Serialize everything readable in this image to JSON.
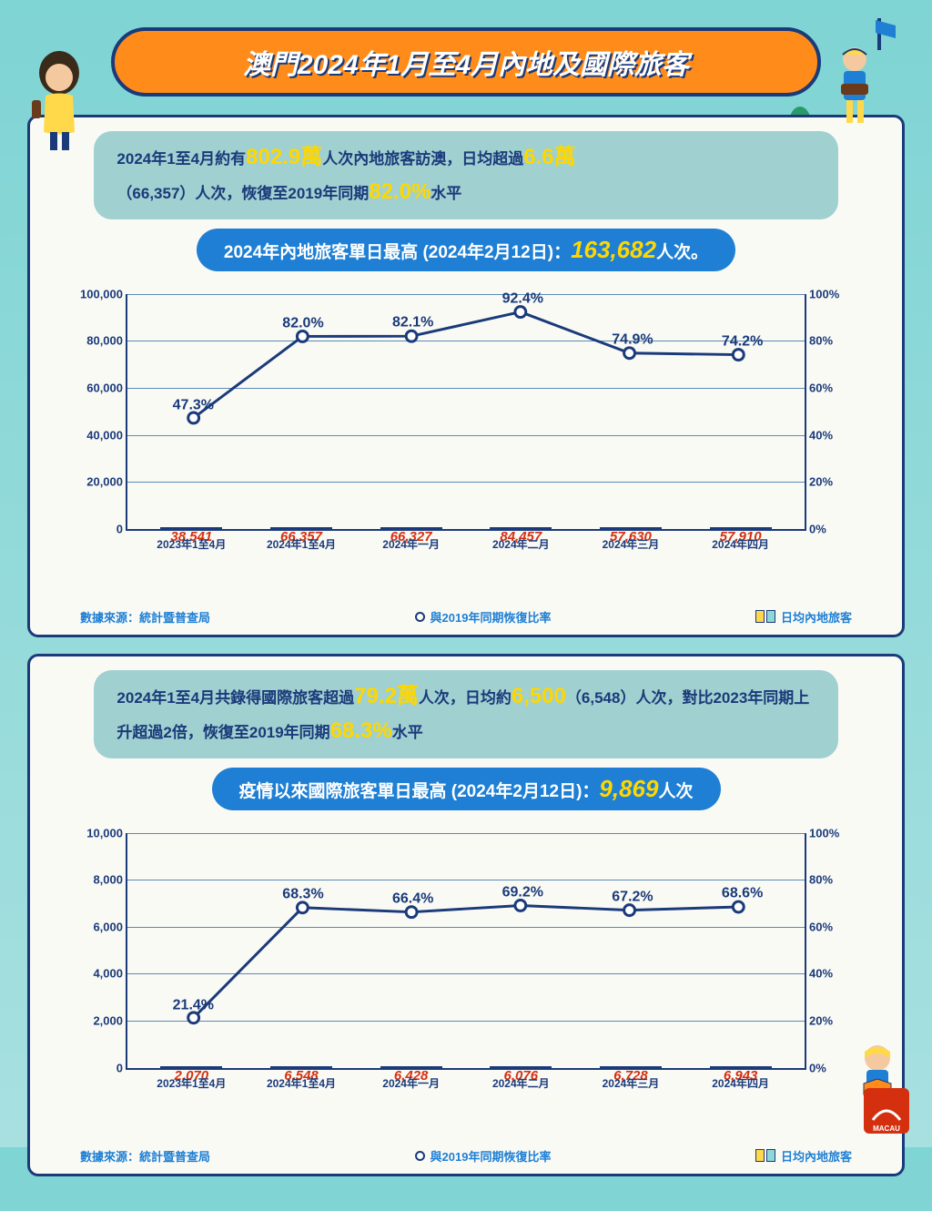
{
  "title": "澳門2024年1月至4月內地及國際旅客",
  "colors": {
    "page_bg": "#7fd4d4",
    "panel_bg": "#fafaf5",
    "border": "#1a3a7a",
    "title_bg": "#ff8c1a",
    "info_bg": "#a0d0d0",
    "peak_bg": "#1e7fd4",
    "highlight": "#ffd700",
    "bar_yellow": "#ffd94a",
    "bar_cyan": "#8fd8d8",
    "bar_value": "#d43010",
    "text": "#1a3a7a",
    "line": "#1a3a7a"
  },
  "mainland": {
    "info_parts": {
      "p1": "2024年1至4月約有",
      "h1": "802.9萬",
      "p2": "人次內地旅客訪澳，日均超過",
      "h2": "6.6萬",
      "p3": "（66,357）人次，恢復至2019年同期",
      "h3": "82.0%",
      "p4": "水平"
    },
    "peak": {
      "label": "2024年內地旅客單日最高 (2024年2月12日)：",
      "value": "163,682",
      "suffix": "人次。"
    },
    "chart": {
      "type": "bar+line",
      "y_left": {
        "min": 0,
        "max": 100000,
        "step": 20000,
        "ticks": [
          "0",
          "20,000",
          "40,000",
          "60,000",
          "80,000",
          "100,000"
        ]
      },
      "y_right": {
        "min": 0,
        "max": 100,
        "step": 20,
        "ticks": [
          "0%",
          "20%",
          "40%",
          "60%",
          "80%",
          "100%"
        ]
      },
      "categories": [
        "2023年1至4月",
        "2024年1至4月",
        "2024年一月",
        "2024年二月",
        "2024年三月",
        "2024年四月"
      ],
      "bars": [
        38541,
        66357,
        66327,
        84457,
        57630,
        57910
      ],
      "bar_labels": [
        "38,541",
        "66,357",
        "66,327",
        "84,457",
        "57,630",
        "57,910"
      ],
      "bar_colors": [
        "#ffd94a",
        "#ffd94a",
        "#8fd8d8",
        "#8fd8d8",
        "#8fd8d8",
        "#8fd8d8"
      ],
      "line_pct": [
        47.3,
        82.0,
        82.1,
        92.4,
        74.9,
        74.2
      ],
      "line_labels": [
        "47.3%",
        "82.0%",
        "82.1%",
        "92.4%",
        "74.9%",
        "74.2%"
      ]
    }
  },
  "international": {
    "info_parts": {
      "p1": "2024年1至4月共錄得國際旅客超過",
      "h1": "79.2萬",
      "p2": "人次，日均約",
      "h2": "6,500",
      "p3": "（6,548）人次，對比2023年同期上升超過2倍，恢復至2019年同期",
      "h3": "68.3%",
      "p4": "水平"
    },
    "peak": {
      "label": "疫情以來國際旅客單日最高 (2024年2月12日)：",
      "value": "9,869",
      "suffix": "人次"
    },
    "chart": {
      "type": "bar+line",
      "y_left": {
        "min": 0,
        "max": 10000,
        "step": 2000,
        "ticks": [
          "0",
          "2,000",
          "4,000",
          "6,000",
          "8,000",
          "10,000"
        ]
      },
      "y_right": {
        "min": 0,
        "max": 100,
        "step": 20,
        "ticks": [
          "0%",
          "20%",
          "40%",
          "60%",
          "80%",
          "100%"
        ]
      },
      "categories": [
        "2023年1至4月",
        "2024年1至4月",
        "2024年一月",
        "2024年二月",
        "2024年三月",
        "2024年四月"
      ],
      "bars": [
        2070,
        6548,
        6428,
        6076,
        6728,
        6943
      ],
      "bar_labels": [
        "2,070",
        "6,548",
        "6,428",
        "6,076",
        "6,728",
        "6,943"
      ],
      "bar_colors": [
        "#ffd94a",
        "#ffd94a",
        "#8fd8d8",
        "#8fd8d8",
        "#8fd8d8",
        "#8fd8d8"
      ],
      "line_pct": [
        21.4,
        68.3,
        66.4,
        69.2,
        67.2,
        68.6
      ],
      "line_labels": [
        "21.4%",
        "68.3%",
        "66.4%",
        "69.2%",
        "67.2%",
        "68.6%"
      ]
    }
  },
  "footer": {
    "source": "數據來源：統計暨普查局",
    "legend_line": "與2019年同期恢復比率",
    "legend_bar": "日均內地旅客"
  },
  "typography": {
    "title_fontsize": 30,
    "info_fontsize": 17,
    "highlight_fontsize": 24,
    "peak_fontsize": 19,
    "peak_value_fontsize": 26,
    "axis_fontsize": 13,
    "bar_label_fontsize": 15,
    "pct_label_fontsize": 16
  }
}
